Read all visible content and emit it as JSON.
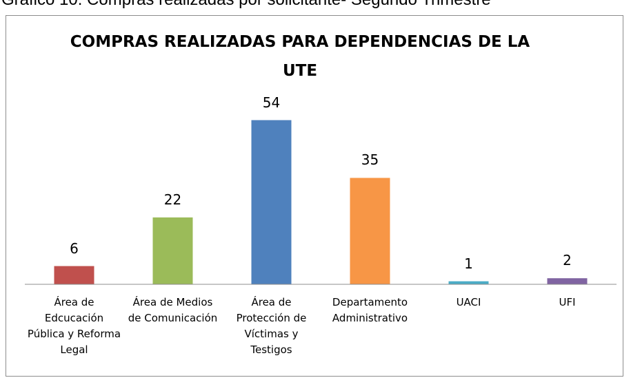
{
  "caption": "Gráfico 10: Compras realizadas por solicitante- Segundo Trimestre",
  "chart_data": {
    "type": "bar",
    "title": "COMPRAS REALIZADAS PARA DEPENDENCIAS DE LA UTE",
    "categories": [
      "Área de Edcucación Pública y Reforma Legal",
      "Área de Medios de Comunicación",
      "Área de Protección de Víctimas y Testigos",
      "Departamento Administrativo",
      "UACI",
      "UFI"
    ],
    "values": [
      6,
      22,
      54,
      35,
      1,
      2
    ],
    "colors": [
      "#c0504d",
      "#9bbb59",
      "#4f81bd",
      "#f79646",
      "#4bacc6",
      "#8064a2"
    ],
    "ylim": [
      0,
      60
    ]
  }
}
